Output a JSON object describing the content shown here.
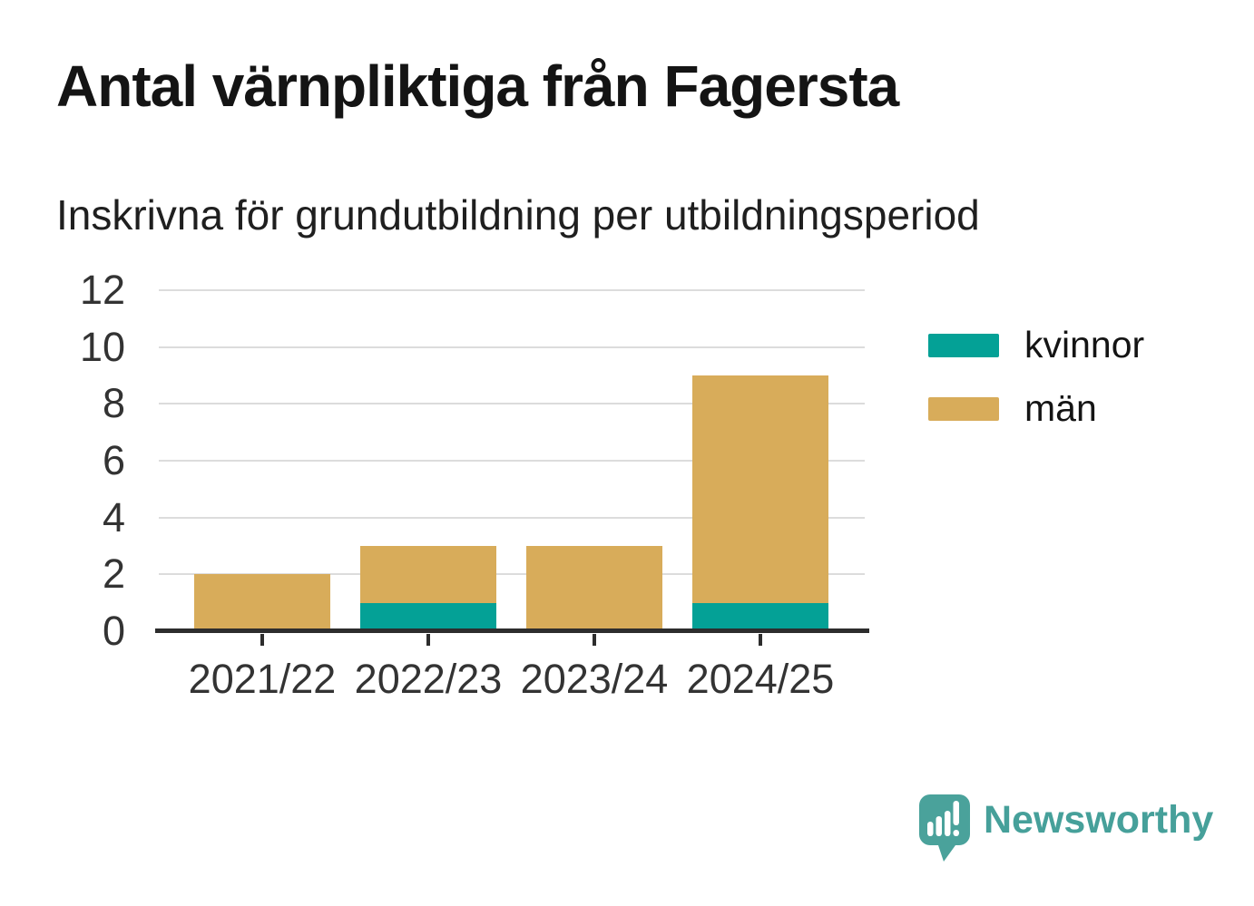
{
  "title": "Antal värnpliktiga från Fagersta",
  "subtitle": "Inskrivna för grundutbildning per utbildningsperiod",
  "chart_data": {
    "type": "bar",
    "stacked": true,
    "title": "Antal värnpliktiga från Fagersta",
    "subtitle": "Inskrivna för grundutbildning per utbildningsperiod",
    "categories": [
      "2021/22",
      "2022/23",
      "2023/24",
      "2024/25"
    ],
    "series": [
      {
        "name": "kvinnor",
        "color": "#04a196",
        "values": [
          0,
          1,
          0,
          1
        ]
      },
      {
        "name": "män",
        "color": "#d8ac5a",
        "values": [
          2,
          2,
          3,
          8
        ]
      }
    ],
    "xlabel": "",
    "ylabel": "",
    "ylim": [
      0,
      12
    ],
    "yticks": [
      0,
      2,
      4,
      6,
      8,
      10,
      12
    ],
    "grid": true,
    "legend_position": "right"
  },
  "colors": {
    "kvinnor_teal": "#04a196",
    "man_gold": "#d8ac5a",
    "axis_line": "#2d2d2d",
    "grid_line": "#dcdcdc",
    "axis_label": "#333333",
    "brand_teal": "#46a09a"
  },
  "branding": {
    "logo_text": "Newsworthy"
  }
}
